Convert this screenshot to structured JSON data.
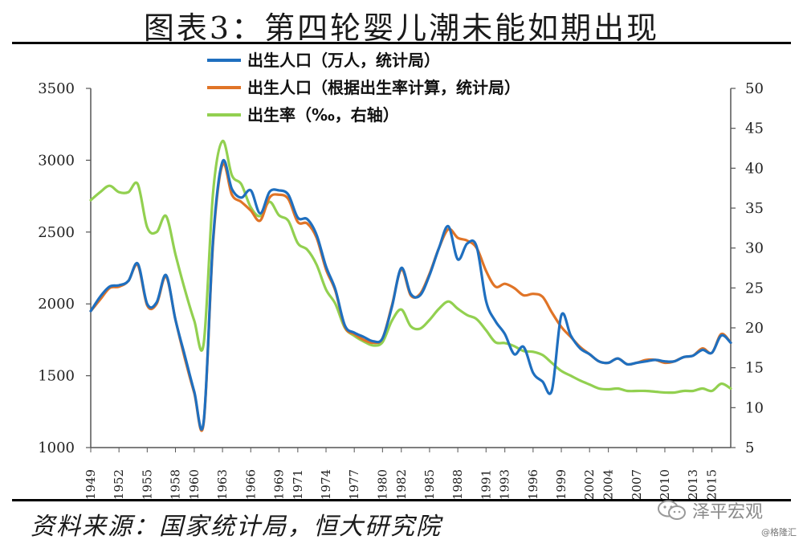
{
  "title": "图表3：第四轮婴儿潮未能如期出现",
  "source": "资料来源：国家统计局，恒大研究院",
  "watermark": {
    "name": "泽平宏观",
    "sub": "@格隆汇",
    "icon": "wechat-icon"
  },
  "chart_data": {
    "type": "line",
    "title": "图表3：第四轮婴儿潮未能如期出现",
    "xlabel": "",
    "ylabel": "",
    "y2label": "",
    "ylim": [
      1000,
      3500
    ],
    "y2lim": [
      5,
      50
    ],
    "yticks": [
      1000,
      1500,
      2000,
      2500,
      3000,
      3500
    ],
    "y2ticks": [
      5,
      10,
      15,
      20,
      25,
      30,
      35,
      40,
      45,
      50
    ],
    "xlim": [
      1949,
      2017
    ],
    "x_tick_labels": [
      "1949",
      "1952",
      "1955",
      "1958",
      "1960",
      "1963",
      "1966",
      "1969",
      "1971",
      "1974",
      "1977",
      "1980",
      "1982",
      "1985",
      "1988",
      "1991",
      "1993",
      "1996",
      "1999",
      "2002",
      "2004",
      "2007",
      "2010",
      "2013",
      "2015"
    ],
    "grid": false,
    "legend_position": "top-center",
    "series": [
      {
        "name": "出生人口（万人，统计局）",
        "axis": "left",
        "color": "#1f6fbf",
        "x": [
          1949,
          1950,
          1951,
          1952,
          1953,
          1954,
          1955,
          1956,
          1957,
          1958,
          1959,
          1960,
          1961,
          1962,
          1963,
          1964,
          1965,
          1966,
          1967,
          1968,
          1969,
          1970,
          1971,
          1972,
          1973,
          1974,
          1975,
          1976,
          1977,
          1978,
          1979,
          1980,
          1981,
          1982,
          1983,
          1984,
          1985,
          1986,
          1987,
          1988,
          1989,
          1990,
          1991,
          1992,
          1993,
          1994,
          1995,
          1996,
          1997,
          1998,
          1999,
          2000,
          2001,
          2002,
          2003,
          2004,
          2005,
          2006,
          2007,
          2008,
          2009,
          2010,
          2011,
          2012,
          2013,
          2014,
          2015,
          2016,
          2017
        ],
        "y": [
          1950,
          2050,
          2120,
          2130,
          2160,
          2280,
          2000,
          2010,
          2200,
          1890,
          1640,
          1390,
          1180,
          2450,
          2990,
          2800,
          2740,
          2790,
          2630,
          2780,
          2790,
          2760,
          2600,
          2590,
          2480,
          2260,
          2100,
          1850,
          1800,
          1770,
          1740,
          1760,
          1980,
          2250,
          2070,
          2060,
          2200,
          2390,
          2540,
          2310,
          2420,
          2400,
          2020,
          1880,
          1790,
          1650,
          1700,
          1520,
          1460,
          1400,
          1920,
          1780,
          1690,
          1650,
          1600,
          1590,
          1620,
          1580,
          1590,
          1600,
          1610,
          1600,
          1600,
          1630,
          1640,
          1680,
          1660,
          1780,
          1730
        ]
      },
      {
        "name": "出生人口（根据出生率计算，统计局）",
        "axis": "left",
        "color": "#e07427",
        "x": [
          1949,
          1950,
          1951,
          1952,
          1953,
          1954,
          1955,
          1956,
          1957,
          1958,
          1959,
          1960,
          1961,
          1962,
          1963,
          1964,
          1965,
          1966,
          1967,
          1968,
          1969,
          1970,
          1971,
          1972,
          1973,
          1974,
          1975,
          1976,
          1977,
          1978,
          1979,
          1980,
          1981,
          1982,
          1983,
          1984,
          1985,
          1986,
          1987,
          1988,
          1989,
          1990,
          1991,
          1992,
          1993,
          1994,
          1995,
          1996,
          1997,
          1998,
          1999,
          2000,
          2001,
          2002,
          2003,
          2004,
          2005,
          2006,
          2007,
          2008,
          2009,
          2010,
          2011,
          2012,
          2013,
          2014,
          2015,
          2016,
          2017
        ],
        "y": [
          1950,
          2030,
          2110,
          2120,
          2160,
          2270,
          1990,
          2000,
          2190,
          1890,
          1620,
          1380,
          1170,
          2430,
          2970,
          2760,
          2710,
          2650,
          2580,
          2740,
          2760,
          2730,
          2570,
          2560,
          2460,
          2240,
          2090,
          1840,
          1790,
          1750,
          1730,
          1760,
          1990,
          2240,
          2060,
          2070,
          2210,
          2390,
          2520,
          2460,
          2440,
          2390,
          2230,
          2120,
          2140,
          2110,
          2060,
          2070,
          2050,
          1940,
          1840,
          1770,
          1700,
          1650,
          1600,
          1590,
          1620,
          1580,
          1590,
          1610,
          1610,
          1590,
          1600,
          1630,
          1640,
          1690,
          1660,
          1790,
          1730
        ]
      },
      {
        "name": "出生率（‰，右轴）",
        "axis": "right",
        "color": "#92d050",
        "x": [
          1949,
          1950,
          1951,
          1952,
          1953,
          1954,
          1955,
          1956,
          1957,
          1958,
          1959,
          1960,
          1961,
          1962,
          1963,
          1964,
          1965,
          1966,
          1967,
          1968,
          1969,
          1970,
          1971,
          1972,
          1973,
          1974,
          1975,
          1976,
          1977,
          1978,
          1979,
          1980,
          1981,
          1982,
          1983,
          1984,
          1985,
          1986,
          1987,
          1988,
          1989,
          1990,
          1991,
          1992,
          1993,
          1994,
          1995,
          1996,
          1997,
          1998,
          1999,
          2000,
          2001,
          2002,
          2003,
          2004,
          2005,
          2006,
          2007,
          2008,
          2009,
          2010,
          2011,
          2012,
          2013,
          2014,
          2015,
          2016,
          2017
        ],
        "y": [
          36.0,
          37.0,
          37.8,
          37.0,
          37.0,
          38.0,
          32.6,
          32.0,
          34.0,
          29.2,
          24.8,
          20.9,
          18.0,
          37.0,
          43.4,
          39.1,
          38.0,
          35.1,
          34.0,
          35.8,
          34.1,
          33.4,
          30.6,
          29.8,
          27.9,
          24.8,
          23.0,
          20.0,
          19.0,
          18.3,
          17.8,
          18.2,
          20.9,
          22.3,
          20.2,
          19.9,
          21.0,
          22.4,
          23.3,
          22.4,
          21.6,
          21.1,
          19.7,
          18.2,
          18.1,
          17.7,
          17.1,
          17.0,
          16.6,
          15.6,
          14.6,
          14.0,
          13.4,
          12.9,
          12.4,
          12.3,
          12.4,
          12.1,
          12.1,
          12.1,
          12.0,
          11.9,
          11.9,
          12.1,
          12.1,
          12.4,
          12.1,
          13.0,
          12.4
        ]
      }
    ]
  }
}
